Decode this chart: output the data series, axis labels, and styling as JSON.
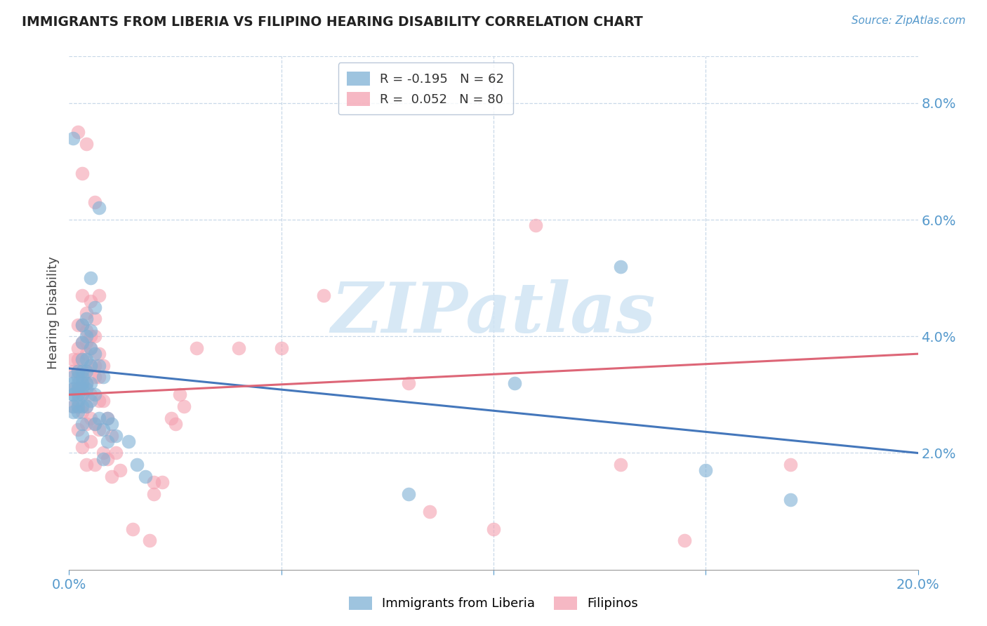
{
  "title": "IMMIGRANTS FROM LIBERIA VS FILIPINO HEARING DISABILITY CORRELATION CHART",
  "source": "Source: ZipAtlas.com",
  "ylabel": "Hearing Disability",
  "right_yticks": [
    "8.0%",
    "6.0%",
    "4.0%",
    "2.0%"
  ],
  "right_ytick_values": [
    0.08,
    0.06,
    0.04,
    0.02
  ],
  "xlim": [
    0.0,
    0.2
  ],
  "ylim": [
    0.0,
    0.088
  ],
  "color_blue": "#7EB0D5",
  "color_pink": "#F4A0B0",
  "trendline_blue": [
    0.0,
    0.0345,
    0.2,
    0.02
  ],
  "trendline_pink": [
    0.0,
    0.03,
    0.2,
    0.037
  ],
  "watermark": "ZIPatlas",
  "blue_scatter": [
    [
      0.001,
      0.074
    ],
    [
      0.007,
      0.062
    ],
    [
      0.005,
      0.05
    ],
    [
      0.006,
      0.045
    ],
    [
      0.004,
      0.043
    ],
    [
      0.003,
      0.042
    ],
    [
      0.005,
      0.041
    ],
    [
      0.004,
      0.04
    ],
    [
      0.003,
      0.039
    ],
    [
      0.005,
      0.038
    ],
    [
      0.006,
      0.037
    ],
    [
      0.004,
      0.036
    ],
    [
      0.003,
      0.036
    ],
    [
      0.007,
      0.035
    ],
    [
      0.005,
      0.035
    ],
    [
      0.004,
      0.034
    ],
    [
      0.003,
      0.034
    ],
    [
      0.002,
      0.034
    ],
    [
      0.001,
      0.033
    ],
    [
      0.002,
      0.033
    ],
    [
      0.003,
      0.033
    ],
    [
      0.008,
      0.033
    ],
    [
      0.005,
      0.032
    ],
    [
      0.004,
      0.032
    ],
    [
      0.003,
      0.032
    ],
    [
      0.002,
      0.032
    ],
    [
      0.001,
      0.032
    ],
    [
      0.001,
      0.031
    ],
    [
      0.002,
      0.031
    ],
    [
      0.003,
      0.031
    ],
    [
      0.004,
      0.031
    ],
    [
      0.006,
      0.03
    ],
    [
      0.003,
      0.03
    ],
    [
      0.002,
      0.03
    ],
    [
      0.001,
      0.03
    ],
    [
      0.001,
      0.03
    ],
    [
      0.002,
      0.029
    ],
    [
      0.005,
      0.029
    ],
    [
      0.004,
      0.028
    ],
    [
      0.003,
      0.028
    ],
    [
      0.002,
      0.028
    ],
    [
      0.001,
      0.028
    ],
    [
      0.001,
      0.027
    ],
    [
      0.002,
      0.027
    ],
    [
      0.007,
      0.026
    ],
    [
      0.009,
      0.026
    ],
    [
      0.003,
      0.025
    ],
    [
      0.006,
      0.025
    ],
    [
      0.01,
      0.025
    ],
    [
      0.008,
      0.024
    ],
    [
      0.003,
      0.023
    ],
    [
      0.011,
      0.023
    ],
    [
      0.009,
      0.022
    ],
    [
      0.014,
      0.022
    ],
    [
      0.008,
      0.019
    ],
    [
      0.016,
      0.018
    ],
    [
      0.018,
      0.016
    ],
    [
      0.13,
      0.052
    ],
    [
      0.105,
      0.032
    ],
    [
      0.15,
      0.017
    ],
    [
      0.08,
      0.013
    ],
    [
      0.17,
      0.012
    ]
  ],
  "pink_scatter": [
    [
      0.002,
      0.075
    ],
    [
      0.004,
      0.073
    ],
    [
      0.003,
      0.068
    ],
    [
      0.006,
      0.063
    ],
    [
      0.007,
      0.047
    ],
    [
      0.003,
      0.047
    ],
    [
      0.005,
      0.046
    ],
    [
      0.004,
      0.044
    ],
    [
      0.006,
      0.043
    ],
    [
      0.003,
      0.042
    ],
    [
      0.002,
      0.042
    ],
    [
      0.004,
      0.041
    ],
    [
      0.005,
      0.04
    ],
    [
      0.006,
      0.04
    ],
    [
      0.003,
      0.039
    ],
    [
      0.004,
      0.039
    ],
    [
      0.002,
      0.038
    ],
    [
      0.005,
      0.038
    ],
    [
      0.007,
      0.037
    ],
    [
      0.004,
      0.037
    ],
    [
      0.003,
      0.036
    ],
    [
      0.002,
      0.036
    ],
    [
      0.001,
      0.036
    ],
    [
      0.006,
      0.035
    ],
    [
      0.008,
      0.035
    ],
    [
      0.005,
      0.035
    ],
    [
      0.004,
      0.034
    ],
    [
      0.003,
      0.034
    ],
    [
      0.002,
      0.034
    ],
    [
      0.001,
      0.034
    ],
    [
      0.006,
      0.033
    ],
    [
      0.007,
      0.033
    ],
    [
      0.004,
      0.032
    ],
    [
      0.003,
      0.032
    ],
    [
      0.002,
      0.031
    ],
    [
      0.001,
      0.031
    ],
    [
      0.003,
      0.03
    ],
    [
      0.005,
      0.03
    ],
    [
      0.007,
      0.029
    ],
    [
      0.008,
      0.029
    ],
    [
      0.004,
      0.028
    ],
    [
      0.002,
      0.028
    ],
    [
      0.001,
      0.028
    ],
    [
      0.003,
      0.027
    ],
    [
      0.005,
      0.026
    ],
    [
      0.009,
      0.026
    ],
    [
      0.006,
      0.025
    ],
    [
      0.004,
      0.025
    ],
    [
      0.002,
      0.024
    ],
    [
      0.007,
      0.024
    ],
    [
      0.01,
      0.023
    ],
    [
      0.005,
      0.022
    ],
    [
      0.003,
      0.021
    ],
    [
      0.008,
      0.02
    ],
    [
      0.011,
      0.02
    ],
    [
      0.009,
      0.019
    ],
    [
      0.004,
      0.018
    ],
    [
      0.006,
      0.018
    ],
    [
      0.012,
      0.017
    ],
    [
      0.01,
      0.016
    ],
    [
      0.11,
      0.059
    ],
    [
      0.015,
      0.007
    ],
    [
      0.02,
      0.013
    ],
    [
      0.02,
      0.015
    ],
    [
      0.022,
      0.015
    ],
    [
      0.024,
      0.026
    ],
    [
      0.025,
      0.025
    ],
    [
      0.026,
      0.03
    ],
    [
      0.027,
      0.028
    ],
    [
      0.03,
      0.038
    ],
    [
      0.13,
      0.018
    ],
    [
      0.17,
      0.018
    ],
    [
      0.085,
      0.01
    ],
    [
      0.019,
      0.005
    ],
    [
      0.1,
      0.007
    ],
    [
      0.145,
      0.005
    ],
    [
      0.08,
      0.032
    ],
    [
      0.06,
      0.047
    ],
    [
      0.05,
      0.038
    ],
    [
      0.04,
      0.038
    ]
  ]
}
